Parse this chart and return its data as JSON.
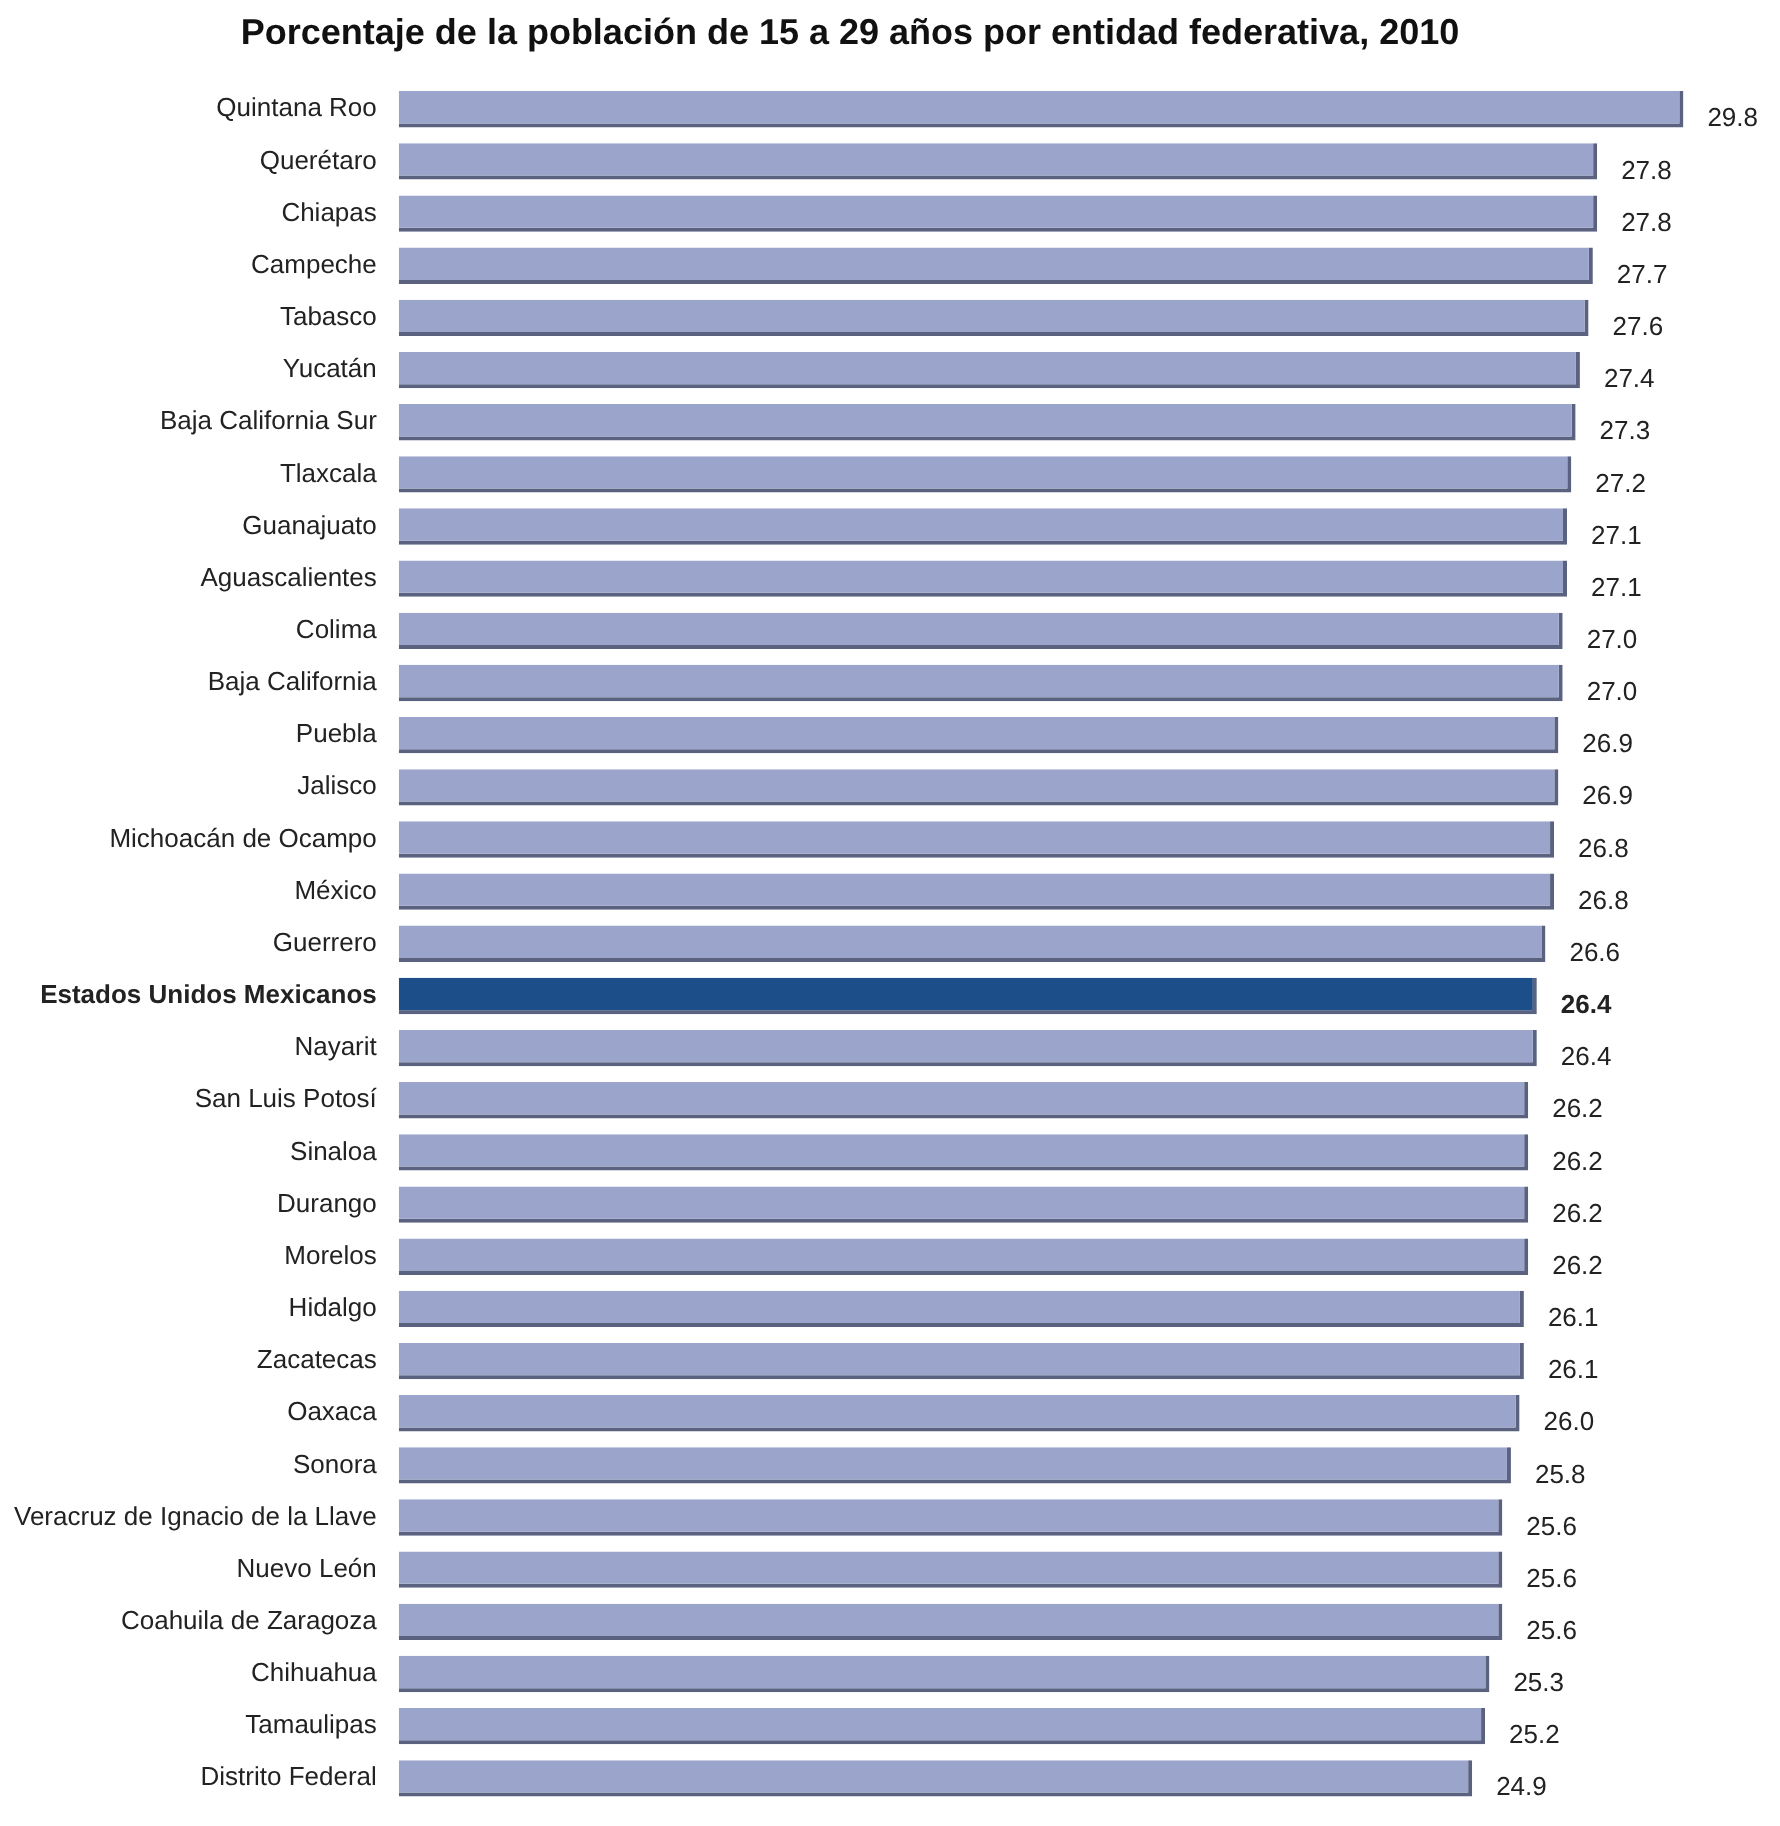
{
  "chart_data": {
    "type": "bar",
    "orientation": "horizontal",
    "title": "Porcentaje de la población de 15 a 29 años por entidad federativa, 2010",
    "categories": [
      "Quintana Roo",
      "Querétaro",
      "Chiapas",
      "Campeche",
      "Tabasco",
      "Yucatán",
      "Baja California Sur",
      "Tlaxcala",
      "Guanajuato",
      "Aguascalientes",
      "Colima",
      "Baja California",
      "Puebla",
      "Jalisco",
      "Michoacán de Ocampo",
      "México",
      "Guerrero",
      "Estados Unidos Mexicanos",
      "Nayarit",
      "San Luis Potosí",
      "Sinaloa",
      "Durango",
      "Morelos",
      "Hidalgo",
      "Zacatecas",
      "Oaxaca",
      "Sonora",
      "Veracruz de Ignacio de la Llave",
      "Nuevo León",
      "Coahuila de Zaragoza",
      "Chihuahua",
      "Tamaulipas",
      "Distrito Federal"
    ],
    "values": [
      29.8,
      27.8,
      27.8,
      27.7,
      27.6,
      27.4,
      27.3,
      27.2,
      27.1,
      27.1,
      27.0,
      27.0,
      26.9,
      26.9,
      26.8,
      26.8,
      26.6,
      26.4,
      26.4,
      26.2,
      26.2,
      26.2,
      26.2,
      26.1,
      26.1,
      26.0,
      25.8,
      25.6,
      25.6,
      25.6,
      25.3,
      25.2,
      24.9
    ],
    "value_labels": [
      "29.8",
      "27.8",
      "27.8",
      "27.7",
      "27.6",
      "27.4",
      "27.3",
      "27.2",
      "27.1",
      "27.1",
      "27.0",
      "27.0",
      "26.9",
      "26.9",
      "26.8",
      "26.8",
      "26.6",
      "26.4",
      "26.4",
      "26.2",
      "26.2",
      "26.2",
      "26.2",
      "26.1",
      "26.1",
      "26.0",
      "25.8",
      "25.6",
      "25.6",
      "25.6",
      "25.3",
      "25.2",
      "24.9"
    ],
    "colors": [
      "#9ba5cc",
      "#9ba5cc",
      "#9ba5cc",
      "#9ba5cc",
      "#9ba5cc",
      "#9ba5cc",
      "#9ba5cc",
      "#9ba5cc",
      "#9ba5cc",
      "#9ba5cc",
      "#9ba5cc",
      "#9ba5cc",
      "#9ba5cc",
      "#9ba5cc",
      "#9ba5cc",
      "#9ba5cc",
      "#9ba5cc",
      "#1c4f8a",
      "#9ba5cc",
      "#9ba5cc",
      "#9ba5cc",
      "#9ba5cc",
      "#9ba5cc",
      "#9ba5cc",
      "#9ba5cc",
      "#9ba5cc",
      "#9ba5cc",
      "#9ba5cc",
      "#9ba5cc",
      "#9ba5cc",
      "#9ba5cc",
      "#9ba5cc",
      "#9ba5cc"
    ],
    "legend": false
  }
}
